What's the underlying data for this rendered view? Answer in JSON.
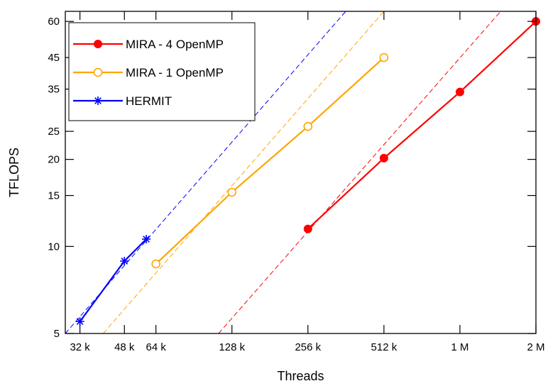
{
  "chart_data": {
    "type": "line",
    "xlabel": "Threads",
    "ylabel": "TFLOPS",
    "x_scale": "log2",
    "y_scale": "log",
    "xlim": [
      28672,
      2097152
    ],
    "ylim": [
      5,
      65
    ],
    "x_ticks": [
      {
        "value": 32768,
        "label": "32 k"
      },
      {
        "value": 49152,
        "label": "48 k"
      },
      {
        "value": 65536,
        "label": "64 k"
      },
      {
        "value": 131072,
        "label": "128 k"
      },
      {
        "value": 262144,
        "label": "256 k"
      },
      {
        "value": 524288,
        "label": "512 k"
      },
      {
        "value": 1048576,
        "label": "1 M"
      },
      {
        "value": 2097152,
        "label": "2 M"
      }
    ],
    "y_ticks": [
      {
        "value": 5,
        "label": "5"
      },
      {
        "value": 10,
        "label": "10"
      },
      {
        "value": 15,
        "label": "15"
      },
      {
        "value": 20,
        "label": "20"
      },
      {
        "value": 25,
        "label": "25"
      },
      {
        "value": 35,
        "label": "35"
      },
      {
        "value": 45,
        "label": "45"
      },
      {
        "value": 60,
        "label": "60"
      }
    ],
    "legend_position": "top-left",
    "series": [
      {
        "name": "MIRA - 4 OpenMP",
        "color": "#ff0000",
        "marker": "filled-circle",
        "x": [
          262144,
          524288,
          1048576,
          2097152
        ],
        "y": [
          11.5,
          20.2,
          34.2,
          60.0
        ],
        "ideal_scaling": {
          "x": [
            116000,
            1520000
          ],
          "y": [
            5.0,
            65.0
          ]
        }
      },
      {
        "name": "MIRA - 1 OpenMP",
        "color": "#ffa500",
        "marker": "open-circle",
        "x": [
          65536,
          131072,
          262144,
          524288
        ],
        "y": [
          8.7,
          15.4,
          26.0,
          45.0
        ],
        "ideal_scaling": {
          "x": [
            40500,
            524288
          ],
          "y": [
            5.0,
            65.0
          ]
        }
      },
      {
        "name": "HERMIT",
        "color": "#0000ff",
        "marker": "asterisk",
        "x": [
          32768,
          49152,
          60000
        ],
        "y": [
          5.5,
          8.9,
          10.6
        ],
        "ideal_scaling": {
          "x": [
            28672,
            370000
          ],
          "y": [
            5.0,
            65.0
          ]
        }
      }
    ]
  }
}
